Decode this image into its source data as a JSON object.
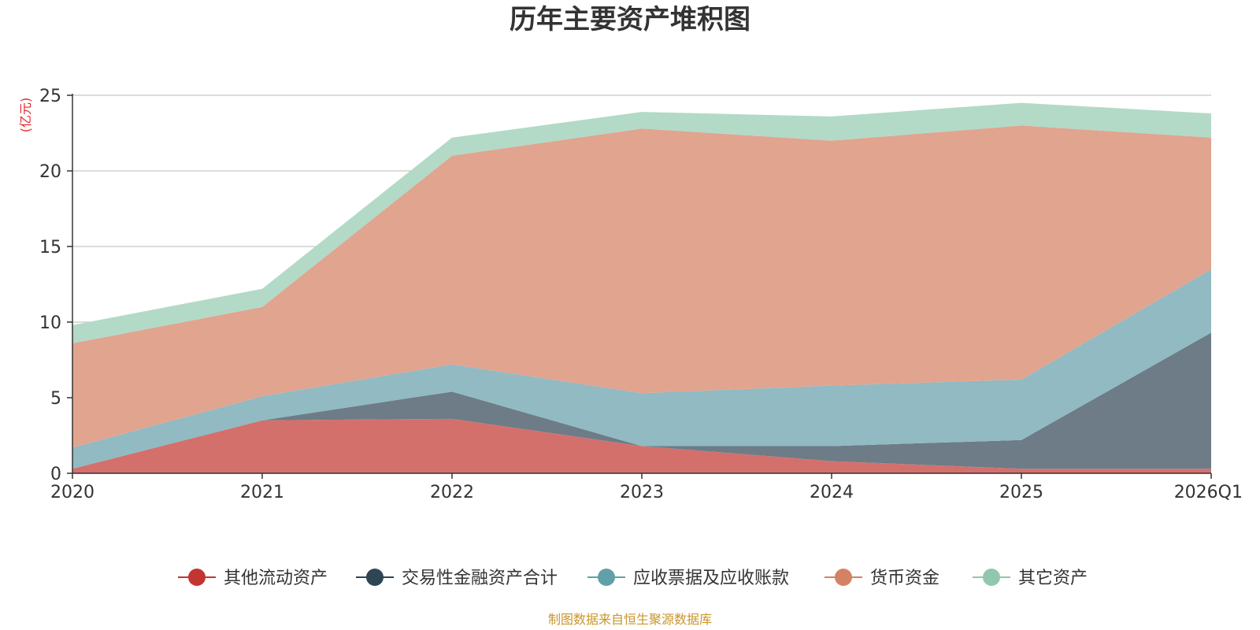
{
  "chart_data": {
    "type": "area",
    "stacked": true,
    "title": "历年主要资产堆积图",
    "ylabel": "(亿元)",
    "xlabel": "",
    "categories": [
      "2020",
      "2021",
      "2022",
      "2023",
      "2024",
      "2025",
      "2026Q1"
    ],
    "ylim": [
      0,
      25
    ],
    "yticks": [
      0,
      5,
      10,
      15,
      20,
      25
    ],
    "grid": true,
    "legend_position": "bottom",
    "series": [
      {
        "name": "其他流动资产",
        "color": "#c23531",
        "fill": "#d4706c",
        "values": [
          0.3,
          3.5,
          3.6,
          1.8,
          0.8,
          0.3,
          0.3
        ]
      },
      {
        "name": "交易性金融资产合计",
        "color": "#2f4554",
        "fill": "#6d7c87",
        "values": [
          0.0,
          0.0,
          1.8,
          0.0,
          1.0,
          1.9,
          9.0
        ]
      },
      {
        "name": "应收票据及应收账款",
        "color": "#61a0a8",
        "fill": "#91bac2",
        "values": [
          1.4,
          1.6,
          1.8,
          3.5,
          4.0,
          4.0,
          4.2
        ]
      },
      {
        "name": "货币资金",
        "color": "#d48265",
        "fill": "#e1a48f",
        "values": [
          6.9,
          5.9,
          13.8,
          17.5,
          16.2,
          16.8,
          8.7
        ]
      },
      {
        "name": "其它资产",
        "color": "#91c7ae",
        "fill": "#b2dac7",
        "values": [
          1.2,
          1.2,
          1.2,
          1.1,
          1.6,
          1.5,
          1.6
        ]
      }
    ]
  },
  "footer": {
    "source": "制图数据来自恒生聚源数据库"
  }
}
